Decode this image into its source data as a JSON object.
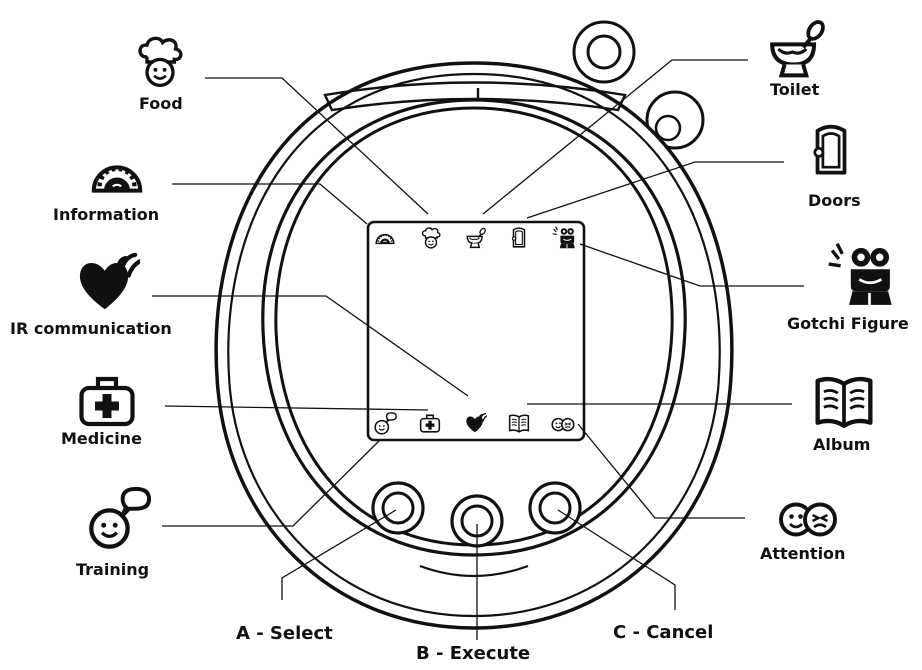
{
  "labels": {
    "food": "Food",
    "information": "Information",
    "ir_communication": "IR communication",
    "medicine": "Medicine",
    "training": "Training",
    "toilet": "Toilet",
    "doors": "Doors",
    "gotchi_figure": "Gotchi Figure",
    "album": "Album",
    "attention": "Attention",
    "button_a": "A - Select",
    "button_b": "B - Execute",
    "button_c": "C - Cancel"
  },
  "colors": {
    "ink": "#111111",
    "background": "#ffffff"
  },
  "icons": {
    "top_row": [
      "information-icon",
      "food-icon",
      "toilet-icon",
      "doors-icon",
      "gotchi-figure-icon"
    ],
    "bottom_row": [
      "training-icon",
      "medicine-icon",
      "ir-communication-icon",
      "album-icon",
      "attention-icon"
    ]
  }
}
